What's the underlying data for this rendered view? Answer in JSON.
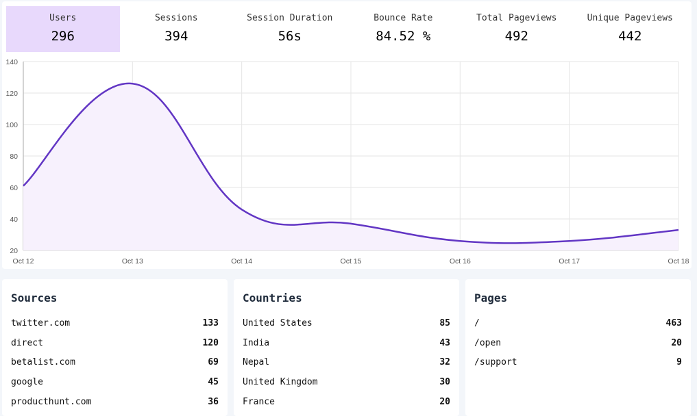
{
  "stats": [
    {
      "label": "Users",
      "value": "296"
    },
    {
      "label": "Sessions",
      "value": "394"
    },
    {
      "label": "Session Duration",
      "value": "56s"
    },
    {
      "label": "Bounce Rate",
      "value": "84.52 %"
    },
    {
      "label": "Total Pageviews",
      "value": "492"
    },
    {
      "label": "Unique Pageviews",
      "value": "442"
    }
  ],
  "chart_data": {
    "type": "area",
    "categories": [
      "Oct 12",
      "Oct 13",
      "Oct 14",
      "Oct 15",
      "Oct 16",
      "Oct 17",
      "Oct 18"
    ],
    "values": [
      61,
      126,
      46,
      37,
      26,
      26,
      33
    ],
    "ylim": [
      20,
      140
    ],
    "yticks": [
      "20",
      "40",
      "60",
      "80",
      "100",
      "120",
      "140"
    ],
    "grid": true,
    "line_color": "#6236c4",
    "fill_color": "#f7f1fd"
  },
  "sources": {
    "title": "Sources",
    "items": [
      {
        "name": "twitter.com",
        "count": "133"
      },
      {
        "name": "direct",
        "count": "120"
      },
      {
        "name": "betalist.com",
        "count": "69"
      },
      {
        "name": "google",
        "count": "45"
      },
      {
        "name": "producthunt.com",
        "count": "36"
      }
    ]
  },
  "countries": {
    "title": "Countries",
    "items": [
      {
        "name": "United States",
        "count": "85"
      },
      {
        "name": "India",
        "count": "43"
      },
      {
        "name": "Nepal",
        "count": "32"
      },
      {
        "name": "United Kingdom",
        "count": "30"
      },
      {
        "name": "France",
        "count": "20"
      }
    ]
  },
  "pages": {
    "title": "Pages",
    "items": [
      {
        "name": "/",
        "count": "463"
      },
      {
        "name": "/open",
        "count": "20"
      },
      {
        "name": "/support",
        "count": "9"
      }
    ]
  }
}
